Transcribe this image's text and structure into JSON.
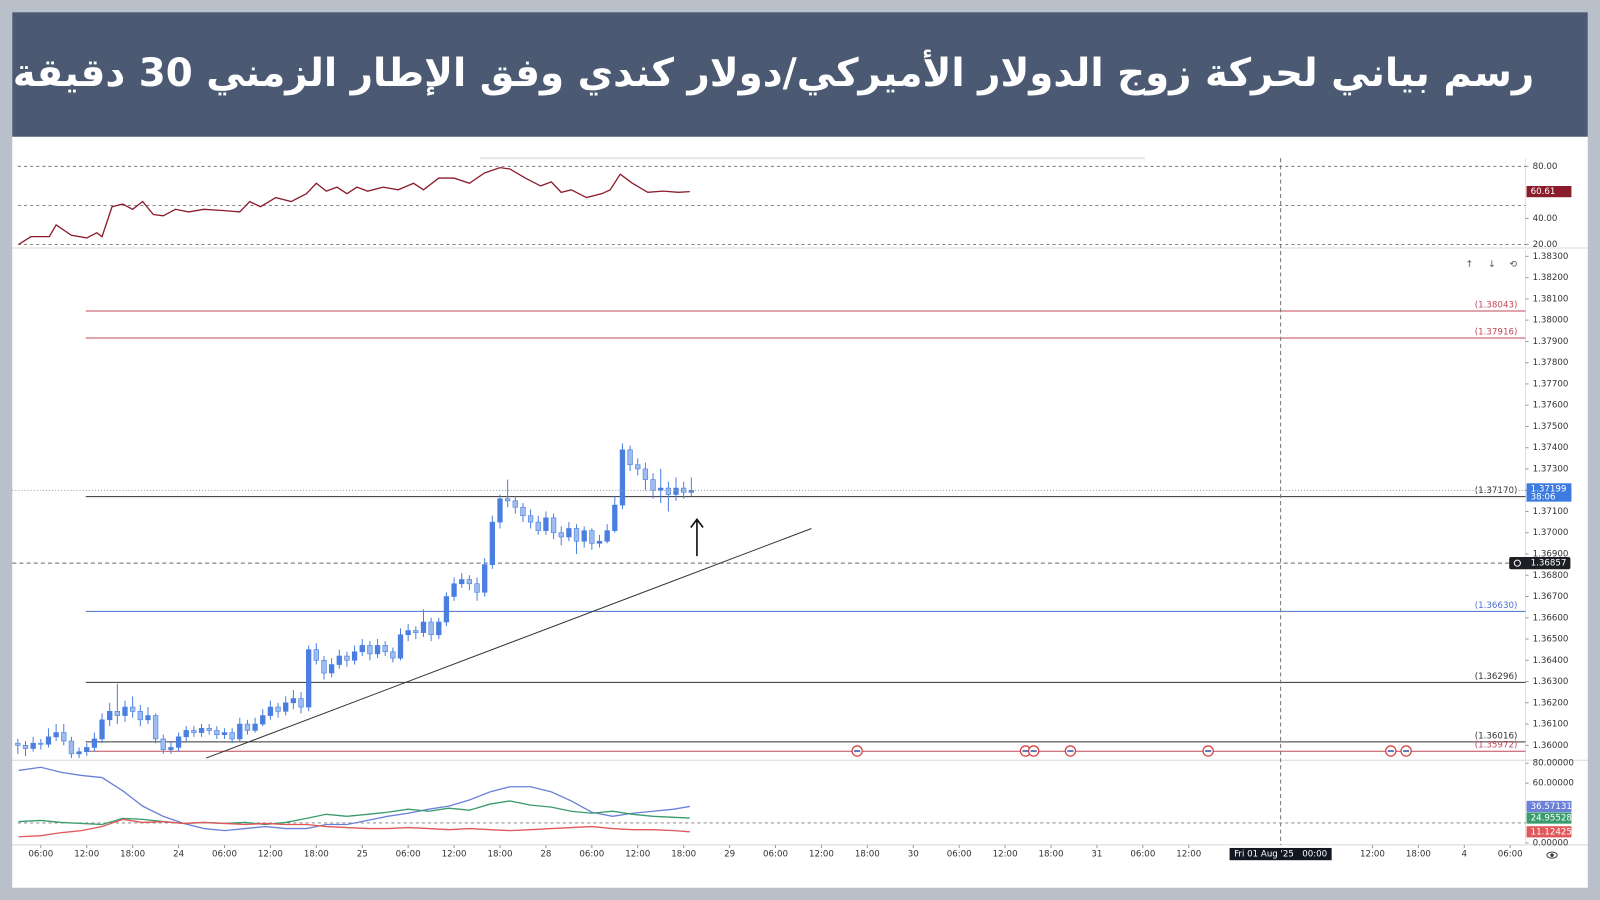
{
  "header": {
    "title": "رسم بياني لحركة زوج الدولار الأميركي/دولار كندي وفق الإطار الزمني 30 دقيقة"
  },
  "chart_data": [
    {
      "type": "line",
      "x": [
        3.1,
        4.7,
        7.1,
        8.0,
        10.0,
        12.0,
        13.3,
        14.0,
        15.3,
        16.7,
        18.0,
        19.3,
        20.7,
        22.0,
        23.6,
        25.3,
        27.3,
        30.0,
        32.0,
        33.3,
        34.7,
        36.7,
        38.7,
        40.7,
        42.0,
        43.3,
        44.7,
        46.0,
        47.3,
        48.7,
        50.7,
        52.7,
        54.7,
        56.0,
        58.0,
        60.0,
        62.0,
        64.0,
        66.0,
        67.3,
        69.3,
        71.3,
        72.7,
        74.0,
        75.3,
        77.3,
        79.3,
        80.4,
        81.7,
        83.3,
        85.3,
        87.3,
        89.3,
        90.8
      ],
      "series": [
        {
          "color": "#8b1c2c",
          "values": [
            20,
            26,
            26,
            35,
            27,
            25,
            29,
            26,
            49,
            51,
            47,
            53,
            43,
            42,
            47,
            45,
            47,
            46,
            45,
            53,
            49,
            56,
            53,
            59,
            67,
            61,
            64,
            59,
            64,
            61,
            64,
            62,
            67,
            62,
            71,
            71,
            67,
            75,
            79,
            78,
            71,
            65,
            68,
            60,
            62,
            56,
            59,
            62,
            74,
            67,
            60,
            61,
            60,
            60.61
          ]
        }
      ],
      "xlim": [
        3,
        200
      ],
      "ylim": [
        17.3,
        86.3
      ],
      "yticks": [
        {
          "value": 80,
          "label": "80.00"
        },
        {
          "value": 40,
          "label": "40.00"
        },
        {
          "value": 20,
          "label": "20.00"
        }
      ],
      "hlines": [
        80,
        50,
        20
      ]
    },
    {
      "type": "candlestick",
      "x": [
        3,
        4,
        5,
        6,
        7,
        8,
        9,
        10,
        11,
        12,
        13,
        14,
        15,
        16,
        17,
        18,
        19,
        20,
        21,
        22,
        23,
        24,
        25,
        26,
        27,
        28,
        29,
        30,
        31,
        32,
        33,
        34,
        35,
        36,
        37,
        38,
        39,
        40,
        41,
        42,
        43,
        44,
        45,
        46,
        47,
        48,
        49,
        50,
        51,
        52,
        53,
        54,
        55,
        56,
        57,
        58,
        59,
        60,
        61,
        62,
        63,
        64,
        65,
        66,
        67,
        68,
        69,
        70,
        71,
        72,
        73,
        74,
        75,
        76,
        77,
        78,
        79,
        80,
        81,
        82,
        83,
        84,
        85,
        86,
        87,
        88,
        89,
        90,
        91
      ],
      "open": [
        1.3601,
        1.36,
        1.35985,
        1.3601,
        1.36005,
        1.3604,
        1.3606,
        1.3602,
        1.3596,
        1.3597,
        1.3599,
        1.3603,
        1.3612,
        1.3616,
        1.3614,
        1.3618,
        1.3616,
        1.3612,
        1.3614,
        1.3603,
        1.3598,
        1.3599,
        1.3604,
        1.3607,
        1.3606,
        1.3608,
        1.3607,
        1.3605,
        1.3606,
        1.3603,
        1.361,
        1.3607,
        1.361,
        1.3614,
        1.3618,
        1.3616,
        1.362,
        1.3622,
        1.3618,
        1.3645,
        1.364,
        1.3634,
        1.3638,
        1.3642,
        1.364,
        1.3644,
        1.3647,
        1.3643,
        1.3647,
        1.3644,
        1.3641,
        1.3652,
        1.3654,
        1.3653,
        1.3658,
        1.3652,
        1.3658,
        1.367,
        1.3676,
        1.3678,
        1.3676,
        1.3672,
        1.3685,
        1.3705,
        1.3716,
        1.3715,
        1.3712,
        1.3708,
        1.3705,
        1.3701,
        1.3707,
        1.37,
        1.3698,
        1.3702,
        1.3696,
        1.3701,
        1.3695,
        1.3696,
        1.3701,
        1.3713,
        1.3739,
        1.3732,
        1.373,
        1.3725,
        1.372,
        1.3721,
        1.3718,
        1.3721,
        1.3719
      ],
      "high": [
        1.3603,
        1.3602,
        1.3604,
        1.3603,
        1.3608,
        1.361,
        1.361,
        1.3604,
        1.3599,
        1.3601,
        1.3606,
        1.3615,
        1.362,
        1.3629,
        1.3621,
        1.3623,
        1.3619,
        1.3618,
        1.3615,
        1.3605,
        1.3602,
        1.3606,
        1.3609,
        1.3609,
        1.361,
        1.361,
        1.3609,
        1.3608,
        1.3608,
        1.3613,
        1.3612,
        1.3613,
        1.3617,
        1.3621,
        1.362,
        1.3623,
        1.3626,
        1.3625,
        1.3647,
        1.3648,
        1.3642,
        1.3641,
        1.3645,
        1.3644,
        1.3647,
        1.365,
        1.3649,
        1.365,
        1.3649,
        1.3646,
        1.3655,
        1.3657,
        1.3656,
        1.3664,
        1.366,
        1.366,
        1.3672,
        1.3679,
        1.3681,
        1.368,
        1.3679,
        1.3688,
        1.3708,
        1.3718,
        1.3725,
        1.3717,
        1.3714,
        1.3711,
        1.3708,
        1.371,
        1.3709,
        1.3703,
        1.3705,
        1.3704,
        1.3703,
        1.3702,
        1.3699,
        1.3704,
        1.3717,
        1.3742,
        1.3741,
        1.3735,
        1.3733,
        1.3728,
        1.373,
        1.3724,
        1.3726,
        1.3724,
        1.3726
      ],
      "low": [
        1.3596,
        1.3595,
        1.3597,
        1.3598,
        1.3599,
        1.3602,
        1.36,
        1.3594,
        1.3594,
        1.3595,
        1.3597,
        1.3601,
        1.3609,
        1.361,
        1.3611,
        1.3613,
        1.3609,
        1.361,
        1.3601,
        1.3596,
        1.3596,
        1.3597,
        1.3602,
        1.3604,
        1.3604,
        1.3605,
        1.3603,
        1.3603,
        1.3601,
        1.3602,
        1.3605,
        1.3606,
        1.3609,
        1.3612,
        1.3613,
        1.3614,
        1.3617,
        1.3615,
        1.3616,
        1.3638,
        1.3631,
        1.3632,
        1.3636,
        1.3637,
        1.3638,
        1.3642,
        1.364,
        1.3641,
        1.3642,
        1.3639,
        1.364,
        1.3649,
        1.365,
        1.3651,
        1.3649,
        1.365,
        1.3656,
        1.3668,
        1.3674,
        1.3673,
        1.3668,
        1.367,
        1.3683,
        1.3702,
        1.3712,
        1.3709,
        1.3705,
        1.3702,
        1.3699,
        1.3699,
        1.3697,
        1.3694,
        1.3696,
        1.369,
        1.3693,
        1.3692,
        1.3693,
        1.3695,
        1.37,
        1.3711,
        1.3729,
        1.3727,
        1.372,
        1.3716,
        1.3714,
        1.371,
        1.3715,
        1.3716,
        1.3717
      ],
      "close": [
        1.36,
        1.35985,
        1.3601,
        1.36005,
        1.3604,
        1.3606,
        1.3602,
        1.3596,
        1.3597,
        1.3599,
        1.3603,
        1.3612,
        1.3616,
        1.3614,
        1.3618,
        1.3616,
        1.3612,
        1.3614,
        1.3603,
        1.3598,
        1.3599,
        1.3604,
        1.3607,
        1.3606,
        1.3608,
        1.3607,
        1.3605,
        1.3606,
        1.3603,
        1.361,
        1.3607,
        1.361,
        1.3614,
        1.3618,
        1.3616,
        1.362,
        1.3622,
        1.3618,
        1.3645,
        1.364,
        1.3634,
        1.3638,
        1.3642,
        1.364,
        1.3644,
        1.3647,
        1.3643,
        1.3647,
        1.3644,
        1.3641,
        1.3652,
        1.3654,
        1.3653,
        1.3658,
        1.3652,
        1.3658,
        1.367,
        1.3676,
        1.3678,
        1.3676,
        1.3672,
        1.3685,
        1.3705,
        1.3716,
        1.3715,
        1.3712,
        1.3708,
        1.3705,
        1.3701,
        1.3707,
        1.37,
        1.3698,
        1.3702,
        1.3696,
        1.3701,
        1.3695,
        1.3696,
        1.3701,
        1.3713,
        1.3739,
        1.3732,
        1.373,
        1.3725,
        1.372,
        1.3721,
        1.3718,
        1.3721,
        1.3719,
        1.37199
      ],
      "up_color": "#4a7fe0",
      "down_color": "#9fbcf0",
      "last_color": "#3d7be0",
      "countdown": "38:06",
      "xlim": [
        3,
        200
      ],
      "ylim": [
        1.3593,
        1.3833
      ],
      "yticks": [
        {
          "value": 1.383,
          "label": "1.38300"
        },
        {
          "value": 1.382,
          "label": "1.38200"
        },
        {
          "value": 1.381,
          "label": "1.38100"
        },
        {
          "value": 1.38,
          "label": "1.38000"
        },
        {
          "value": 1.379,
          "label": "1.37900"
        },
        {
          "value": 1.378,
          "label": "1.37800"
        },
        {
          "value": 1.377,
          "label": "1.37700"
        },
        {
          "value": 1.376,
          "label": "1.37600"
        },
        {
          "value": 1.375,
          "label": "1.37500"
        },
        {
          "value": 1.374,
          "label": "1.37400"
        },
        {
          "value": 1.373,
          "label": "1.37300"
        },
        {
          "value": 1.372,
          "label": "1.37200"
        },
        {
          "value": 1.371,
          "label": "1.37100"
        },
        {
          "value": 1.37,
          "label": "1.37000"
        },
        {
          "value": 1.369,
          "label": "1.36900"
        },
        {
          "value": 1.368,
          "label": "1.36800"
        },
        {
          "value": 1.367,
          "label": "1.36700"
        },
        {
          "value": 1.366,
          "label": "1.36600"
        },
        {
          "value": 1.365,
          "label": "1.36500"
        },
        {
          "value": 1.364,
          "label": "1.36400"
        },
        {
          "value": 1.363,
          "label": "1.36300"
        },
        {
          "value": 1.362,
          "label": "1.36200"
        },
        {
          "value": 1.361,
          "label": "1.36100"
        },
        {
          "value": 1.36,
          "label": "1.36000"
        }
      ],
      "levels": [
        {
          "value": 1.38043,
          "label": "(1.38043)",
          "color": "#c0485a"
        },
        {
          "value": 1.37916,
          "label": "(1.37916)",
          "color": "#c0485a"
        },
        {
          "value": 1.3717,
          "label": "(1.37170)",
          "color": "#333333"
        },
        {
          "value": 1.3663,
          "label": "(1.36630)",
          "color": "#4d6fd0"
        },
        {
          "value": 1.36296,
          "label": "(1.36296)",
          "color": "#333333"
        },
        {
          "value": 1.36016,
          "label": "(1.36016)",
          "color": "#333333"
        },
        {
          "value": 1.35972,
          "label": "(1.35972)",
          "color": "#c0485a"
        }
      ],
      "trendline": {
        "x": [
          27.6,
          106.7
        ],
        "y": [
          1.3594,
          1.3702
        ]
      },
      "marker_line": 1.36857
    },
    {
      "type": "line",
      "x": [
        3.1,
        6,
        8.7,
        11.3,
        14,
        16.7,
        19.3,
        22,
        24.7,
        27.3,
        30,
        32.7,
        35.3,
        38,
        40.7,
        43.3,
        46,
        48.7,
        51.3,
        54,
        56.7,
        59.3,
        62,
        64.7,
        67.3,
        70,
        72.7,
        75.3,
        78,
        80.7,
        83.3,
        86,
        88.7,
        90.8
      ],
      "series": [
        {
          "color": "#6b80d8",
          "values": [
            72.8,
            75.9,
            70.8,
            67.7,
            65.6,
            52.3,
            36.9,
            26.7,
            19.5,
            14.4,
            12.3,
            14.4,
            16.4,
            14.4,
            14.4,
            18.5,
            18.5,
            22.6,
            26.7,
            29.7,
            33.8,
            36.9,
            43.1,
            51.3,
            56.4,
            56.4,
            51.3,
            42.1,
            30.8,
            26.7,
            29.7,
            31.8,
            33.8,
            36.57131
          ]
        },
        {
          "color": "#3a9c6e",
          "values": [
            21.5,
            22.6,
            20.5,
            19.5,
            18.5,
            24.6,
            23.6,
            21.5,
            19.5,
            20.5,
            19.5,
            20.5,
            18.5,
            20.5,
            24.6,
            28.7,
            26.7,
            28.7,
            30.8,
            33.8,
            31.8,
            34.9,
            32.8,
            39.0,
            42.1,
            37.9,
            35.9,
            31.8,
            29.7,
            31.8,
            28.7,
            26.7,
            25.6,
            24.95528
          ]
        },
        {
          "color": "#e0575c",
          "values": [
            6.2,
            7.2,
            10.3,
            12.3,
            16.4,
            23.6,
            20.5,
            21.5,
            19.5,
            20.5,
            19.5,
            18.5,
            19.5,
            18.5,
            18.5,
            16.4,
            15.4,
            14.4,
            14.4,
            15.4,
            14.4,
            13.3,
            14.4,
            13.3,
            12.3,
            13.3,
            14.4,
            15.4,
            16.4,
            14.4,
            13.3,
            13.3,
            12.3,
            11.12425
          ]
        }
      ],
      "xlim": [
        3,
        200
      ],
      "ylim": [
        -2,
        83
      ],
      "yticks": [
        {
          "value": 80,
          "label": "80.00000"
        },
        {
          "value": 60,
          "label": "60.00000"
        },
        {
          "value": 0,
          "label": "0.00000"
        }
      ],
      "hlines": [
        20
      ],
      "xticks": [
        {
          "value": 6,
          "label": "06:00"
        },
        {
          "value": 12,
          "label": "12:00"
        },
        {
          "value": 18,
          "label": "18:00"
        },
        24,
        {
          "value": 30,
          "label": "06:00"
        },
        {
          "value": 36,
          "label": "12:00"
        },
        {
          "value": 42,
          "label": "18:00"
        },
        {
          "value": 48,
          "label": "25"
        },
        {
          "value": 54,
          "label": "06:00"
        },
        {
          "value": 60,
          "label": "12:00"
        },
        {
          "value": 66,
          "label": "18:00"
        },
        {
          "value": 72,
          "label": "28"
        },
        {
          "value": 78,
          "label": "06:00"
        },
        {
          "value": 84,
          "label": "12:00"
        },
        {
          "value": 90,
          "label": "18:00"
        },
        {
          "value": 96,
          "label": "29"
        },
        {
          "value": 102,
          "label": "06:00"
        },
        {
          "value": 108,
          "label": "12:00"
        },
        {
          "value": 114,
          "label": "18:00"
        },
        {
          "value": 120,
          "label": "30"
        },
        {
          "value": 126,
          "label": "06:00"
        },
        {
          "value": 132,
          "label": "12:00"
        },
        {
          "value": 138,
          "label": "18:00"
        },
        {
          "value": 144,
          "label": "31"
        },
        {
          "value": 150,
          "label": "06:00"
        },
        {
          "value": 156,
          "label": "12:00"
        },
        {
          "value": 180,
          "label": "12:00"
        },
        {
          "value": 186,
          "label": "18:00"
        },
        {
          "value": 192,
          "label": "4"
        },
        {
          "value": 198,
          "label": "06:00"
        }
      ],
      "crosshair": {
        "x": 168,
        "label": "Fri 01 Aug '25   00:00"
      }
    }
  ]
}
